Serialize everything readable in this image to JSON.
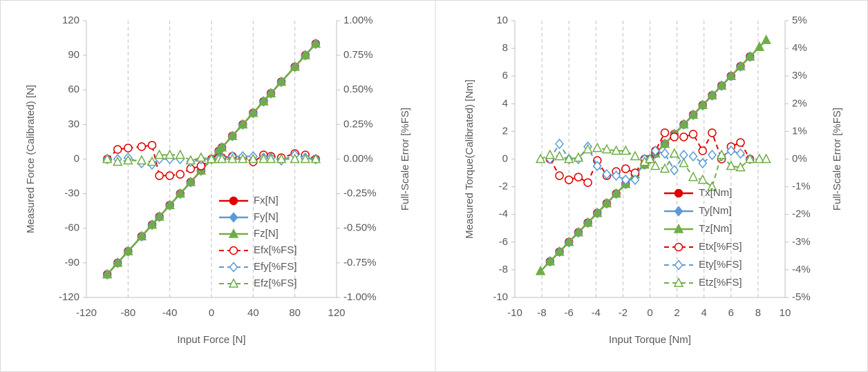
{
  "chart_data": [
    {
      "type": "line",
      "x_label": "Input Force [N]",
      "y_label": "Measured Force (Calibrated) [N]",
      "y2_label": "Full-Scale Error [%FS]",
      "x": [
        -100,
        -90,
        -80,
        -67,
        -57,
        -50,
        -40,
        -30,
        -20,
        -10,
        0,
        7,
        10,
        20,
        30,
        40,
        50,
        57,
        67,
        80,
        90,
        100
      ],
      "xlim": [
        -120,
        120
      ],
      "xticks": [
        -120,
        -80,
        -40,
        0,
        40,
        80,
        120
      ],
      "ylim": [
        -120,
        120
      ],
      "yticks": [
        -120,
        -90,
        -60,
        -30,
        0,
        30,
        60,
        90,
        120
      ],
      "y2lim": [
        -1,
        1
      ],
      "y2ticks": [
        {
          "value": -1,
          "label": "-1.00%"
        },
        {
          "value": -0.75,
          "label": "-0.75%"
        },
        {
          "value": -0.5,
          "label": "-0.50%"
        },
        {
          "value": -0.25,
          "label": "-0.25%"
        },
        {
          "value": 0,
          "label": "0.00%"
        },
        {
          "value": 0.25,
          "label": "0.25%"
        },
        {
          "value": 0.5,
          "label": "0.50%"
        },
        {
          "value": 0.75,
          "label": "0.75%"
        },
        {
          "value": 1,
          "label": "1.00%"
        }
      ],
      "grid": "x",
      "legend": "lower right",
      "series": [
        {
          "name": "Fx[N]",
          "color": "#e00000",
          "marker": "circle",
          "line_style": "solid",
          "values": [
            -100,
            -90,
            -80,
            -67,
            -57,
            -50,
            -40,
            -30,
            -20,
            -10,
            0,
            7,
            10,
            20,
            30,
            40,
            50,
            57,
            67,
            80,
            90,
            100
          ]
        },
        {
          "name": "Fy[N]",
          "color": "#5b9bd5",
          "marker": "diamond",
          "line_style": "solid",
          "values": [
            -100,
            -90,
            -80,
            -67,
            -57,
            -50,
            -40,
            -30,
            -20,
            -10,
            0,
            7,
            10,
            20,
            30,
            40,
            50,
            57,
            67,
            80,
            90,
            100
          ]
        },
        {
          "name": "Fz[N]",
          "color": "#70ad47",
          "marker": "triangle",
          "line_style": "solid",
          "values": [
            -100,
            -90,
            -80,
            -67,
            -57,
            -50,
            -40,
            -30,
            -20,
            -10,
            0,
            7,
            10,
            20,
            30,
            40,
            50,
            57,
            67,
            80,
            90,
            100
          ]
        },
        {
          "name": "Efx[%FS]",
          "color": "#e00000",
          "marker": "circle",
          "line_style": "dashed",
          "axis": "y2",
          "values": [
            0,
            0.07,
            0.08,
            0.09,
            0.1,
            -0.12,
            -0.12,
            -0.11,
            -0.07,
            -0.05,
            0,
            0.01,
            0.01,
            0.02,
            0.01,
            -0.02,
            0.03,
            0.02,
            0.01,
            0.04,
            0.03,
            0
          ]
        },
        {
          "name": "Efy[%FS]",
          "color": "#5b9bd5",
          "marker": "diamond",
          "line_style": "dashed",
          "axis": "y2",
          "values": [
            0,
            0,
            0.01,
            -0.03,
            -0.04,
            0,
            0,
            0,
            -0.02,
            0,
            0,
            0.01,
            0.01,
            0.02,
            0.02,
            0.02,
            0.01,
            0.01,
            -0.01,
            0.03,
            0.01,
            0
          ]
        },
        {
          "name": "Efz[%FS]",
          "color": "#70ad47",
          "marker": "triangle",
          "line_style": "dashed",
          "axis": "y2",
          "values": [
            0,
            -0.02,
            -0.01,
            -0.01,
            -0.02,
            0.03,
            0.03,
            0.03,
            -0.01,
            0.01,
            0,
            0,
            0,
            0,
            0,
            0,
            0,
            0,
            0,
            0,
            0,
            0
          ]
        }
      ]
    },
    {
      "type": "line",
      "x_label": "Input Torque [Nm]",
      "y_label": "Measured Torque(Calibrated) [Nm]",
      "y2_label": "Full-Scale Error [%FS]",
      "x": [
        -8.1,
        -7.4,
        -6.7,
        -6,
        -5.3,
        -4.6,
        -3.9,
        -3.2,
        -2.5,
        -1.8,
        -1.1,
        -0.4,
        0,
        0.4,
        1.1,
        1.8,
        2.5,
        3.2,
        3.9,
        4.6,
        5.3,
        6,
        6.7,
        7.4,
        8.1,
        8.6
      ],
      "xlim": [
        -10,
        10
      ],
      "xticks": [
        -10,
        -8,
        -6,
        -4,
        -2,
        0,
        2,
        4,
        6,
        8,
        10
      ],
      "ylim": [
        -10,
        10
      ],
      "yticks": [
        -10,
        -8,
        -6,
        -4,
        -2,
        0,
        2,
        4,
        6,
        8,
        10
      ],
      "y2lim": [
        -5,
        5
      ],
      "y2ticks": [
        {
          "value": -5,
          "label": "-5%"
        },
        {
          "value": -4,
          "label": "-4%"
        },
        {
          "value": -3,
          "label": "-3%"
        },
        {
          "value": -2,
          "label": "-2%"
        },
        {
          "value": -1,
          "label": "-1%"
        },
        {
          "value": 0,
          "label": "0%"
        },
        {
          "value": 1,
          "label": "1%"
        },
        {
          "value": 2,
          "label": "2%"
        },
        {
          "value": 3,
          "label": "3%"
        },
        {
          "value": 4,
          "label": "4%"
        },
        {
          "value": 5,
          "label": "5%"
        }
      ],
      "grid": "x",
      "legend": "lower right",
      "series": [
        {
          "name": "Tx[Nm]",
          "color": "#e00000",
          "marker": "circle",
          "line_style": "solid",
          "values": [
            null,
            -7.4,
            -6.7,
            -6,
            -5.3,
            -4.6,
            -3.9,
            -3.2,
            -2.5,
            -1.8,
            -1.1,
            -0.4,
            0,
            0.4,
            1.1,
            1.8,
            2.5,
            3.2,
            3.9,
            4.6,
            5.3,
            6,
            6.7,
            7.4,
            null,
            null
          ]
        },
        {
          "name": "Ty[Nm]",
          "color": "#5b9bd5",
          "marker": "diamond",
          "line_style": "solid",
          "values": [
            null,
            -7.4,
            -6.7,
            -6,
            -5.3,
            -4.6,
            -3.9,
            -3.2,
            -2.5,
            -1.8,
            -1.1,
            -0.4,
            0,
            0.4,
            1.1,
            1.8,
            2.5,
            3.2,
            3.9,
            4.6,
            5.3,
            6,
            6.7,
            7.4,
            null,
            null
          ]
        },
        {
          "name": "Tz[Nm]",
          "color": "#70ad47",
          "marker": "triangle",
          "line_style": "solid",
          "values": [
            -8.1,
            -7.4,
            -6.7,
            -6,
            -5.3,
            -4.6,
            -3.9,
            -3.2,
            -2.5,
            -1.8,
            -1.1,
            -0.4,
            0,
            0.4,
            1.1,
            1.8,
            2.5,
            3.2,
            3.9,
            4.6,
            5.3,
            6,
            6.7,
            7.4,
            8.1,
            8.6
          ]
        },
        {
          "name": "Etx[%FS]",
          "color": "#e00000",
          "marker": "circle",
          "line_style": "dashed",
          "axis": "y2",
          "values": [
            null,
            0,
            -0.6,
            -0.75,
            -0.65,
            -0.85,
            -0.05,
            -0.6,
            -0.45,
            -0.35,
            -0.5,
            0,
            0,
            0.3,
            0.95,
            0.8,
            0.8,
            0.9,
            0.3,
            0.95,
            0,
            0.45,
            0.6,
            0,
            null,
            null
          ]
        },
        {
          "name": "Ety[%FS]",
          "color": "#5b9bd5",
          "marker": "diamond",
          "line_style": "dashed",
          "axis": "y2",
          "values": [
            null,
            0,
            0.55,
            0,
            0,
            0.45,
            -0.25,
            -0.55,
            -0.6,
            -0.75,
            -0.75,
            0,
            0,
            0.3,
            0.2,
            -0.4,
            0.15,
            0.1,
            -0.15,
            0.15,
            0.1,
            0.3,
            0.2,
            0,
            null,
            null
          ]
        },
        {
          "name": "Etz[%FS]",
          "color": "#70ad47",
          "marker": "triangle",
          "line_style": "dashed",
          "axis": "y2",
          "values": [
            0,
            0.15,
            0.1,
            0,
            0.05,
            0.35,
            0.4,
            0.35,
            0.3,
            0.3,
            0.1,
            -0.1,
            0,
            -0.25,
            -0.35,
            0.2,
            -0.15,
            -0.65,
            -0.75,
            -1.0,
            0.15,
            -0.25,
            -0.3,
            0,
            0,
            0
          ]
        }
      ]
    }
  ]
}
